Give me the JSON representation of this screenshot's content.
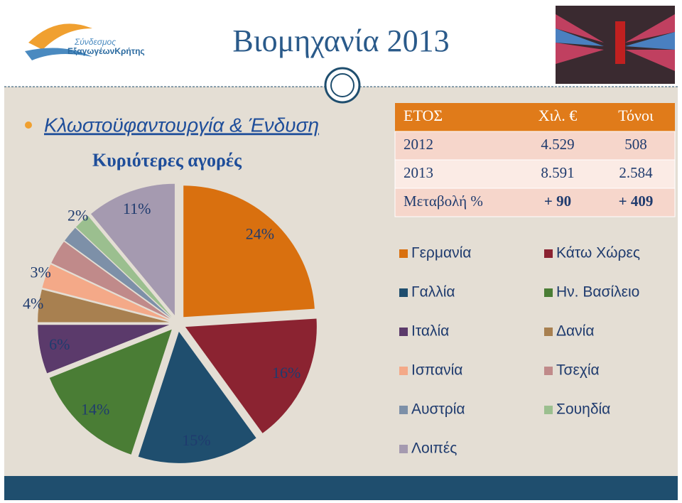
{
  "header": {
    "logo_line1": "Σύνδεσμος",
    "logo_line2": "ΕξαγωγέωνΚρήτης",
    "title": "Βιομηχανία 2013",
    "bullet": "Κλωστοϋφαντουργία & Ένδυση",
    "subtitle": "Κυριότερες αγορές"
  },
  "table": {
    "columns": [
      "ΕΤΟΣ",
      "Χιλ. €",
      "Τόνοι"
    ],
    "rows": [
      [
        "2012",
        "4.529",
        "508"
      ],
      [
        "2013",
        "8.591",
        "2.584"
      ],
      [
        "Μεταβολή %",
        "+ 90",
        "+ 409"
      ]
    ]
  },
  "chart_data": {
    "type": "pie",
    "categories": [
      "Γερμανία",
      "Κάτω Χώρες",
      "Γαλλία",
      "Ην. Βασίλειο",
      "Ιταλία",
      "Δανία",
      "Ισπανία",
      "Τσεχία",
      "Αυστρία",
      "Σουηδία",
      "Λοιπές"
    ],
    "values": [
      24,
      16,
      15,
      14,
      6,
      4,
      3,
      3,
      2,
      2,
      11
    ],
    "value_labels": [
      "24%",
      "16%",
      "15%",
      "14%",
      "6%",
      "4%",
      "3%",
      null,
      null,
      "2%",
      "11%"
    ],
    "colors": [
      "#d9700f",
      "#8b2331",
      "#1f4e6e",
      "#4a7d35",
      "#5b3a6b",
      "#a88050",
      "#f4a988",
      "#c08a8a",
      "#7d90a8",
      "#9bbf8f",
      "#a59ab0"
    ]
  }
}
